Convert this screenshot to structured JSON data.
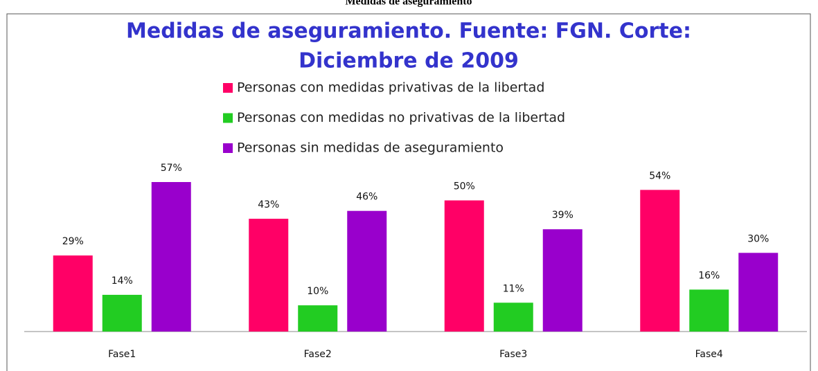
{
  "caption": "Medidas de aseguramiento",
  "chart_data": {
    "type": "bar",
    "title": [
      "Medidas de aseguramiento. Fuente: FGN. Corte:",
      "Diciembre de 2009"
    ],
    "categories": [
      "Fase1",
      "Fase2",
      "Fase3",
      "Fase4"
    ],
    "series": [
      {
        "name": "Personas con medidas privativas de la libertad",
        "color": "#ff0066",
        "values": [
          29,
          43,
          50,
          54
        ],
        "value_labels": [
          "29%",
          "43%",
          "50%",
          "54%"
        ]
      },
      {
        "name": "Personas con medidas no privativas de la libertad",
        "color": "#22cc22",
        "values": [
          14,
          10,
          11,
          16
        ],
        "value_labels": [
          "14%",
          "10%",
          "11%",
          "16%"
        ]
      },
      {
        "name": "Personas sin medidas de aseguramiento",
        "color": "#9900cc",
        "values": [
          57,
          46,
          39,
          30
        ],
        "value_labels": [
          "57%",
          "46%",
          "39%",
          "30%"
        ]
      }
    ]
  }
}
